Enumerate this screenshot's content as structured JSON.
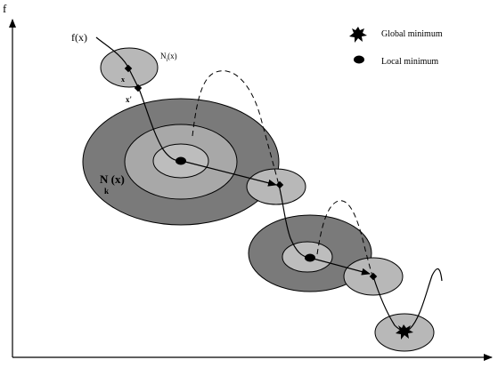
{
  "axes": {
    "y_label": "f"
  },
  "legend": {
    "global_label": "Global minimum",
    "local_label": "Local minimum"
  },
  "labels": {
    "fx": "f(x)",
    "ni_main": "N",
    "ni_sub": "i",
    "ni_arg": "(x)",
    "x": "x",
    "x_prime": "x'",
    "nk_main": "N (x)",
    "nk_sub": "k"
  },
  "colors": {
    "background": "#ffffff",
    "outer_ring": "#7a7a7a",
    "middle_ring": "#a8a8a8",
    "inner_ring": "#bdbdbd",
    "small_neighborhood": "#b8b8b8",
    "stroke": "#000000"
  },
  "icons": {
    "global_minimum": "star-burst-icon",
    "local_minimum": "filled-ellipse-icon"
  }
}
